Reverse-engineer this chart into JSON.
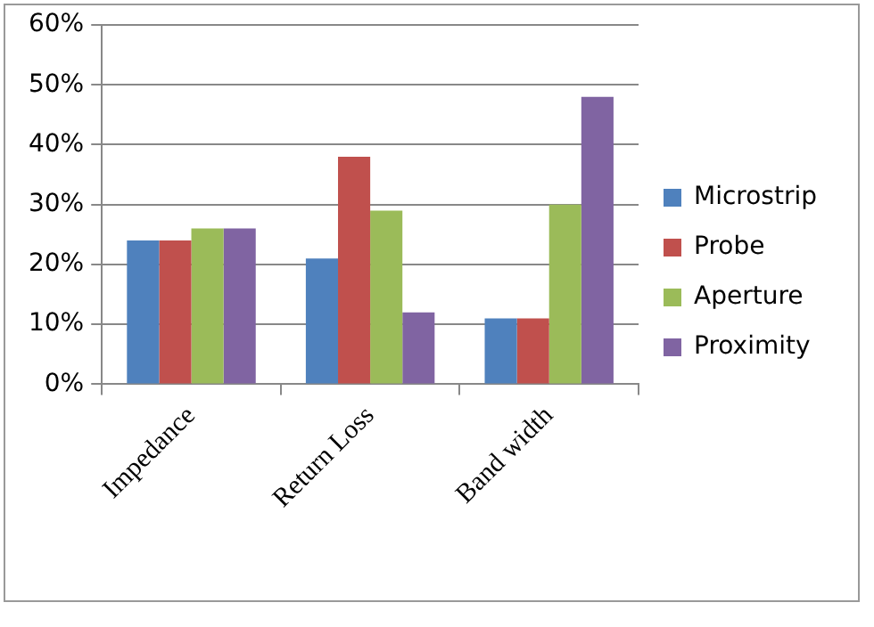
{
  "chart_data": {
    "type": "bar",
    "categories": [
      "Impedance",
      "Return Loss",
      "Band width"
    ],
    "series": [
      {
        "name": "Microstrip",
        "color": "#4f81bd",
        "values": [
          0.24,
          0.21,
          0.11
        ]
      },
      {
        "name": "Probe",
        "color": "#c0504d",
        "values": [
          0.24,
          0.38,
          0.11
        ]
      },
      {
        "name": "Aperture",
        "color": "#9bbb59",
        "values": [
          0.26,
          0.29,
          0.3
        ]
      },
      {
        "name": "Proximity",
        "color": "#8064a2",
        "values": [
          0.26,
          0.12,
          0.48
        ]
      }
    ],
    "ylim": [
      0,
      0.6
    ],
    "yticks": [
      {
        "value": 0,
        "label": "0%"
      },
      {
        "value": 0.1,
        "label": "10%"
      },
      {
        "value": 0.2,
        "label": "20%"
      },
      {
        "value": 0.3,
        "label": "30%"
      },
      {
        "value": 0.4,
        "label": "40%"
      },
      {
        "value": 0.5,
        "label": "50%"
      },
      {
        "value": 0.6,
        "label": "60%"
      }
    ],
    "grid": "y",
    "legend": "right"
  }
}
